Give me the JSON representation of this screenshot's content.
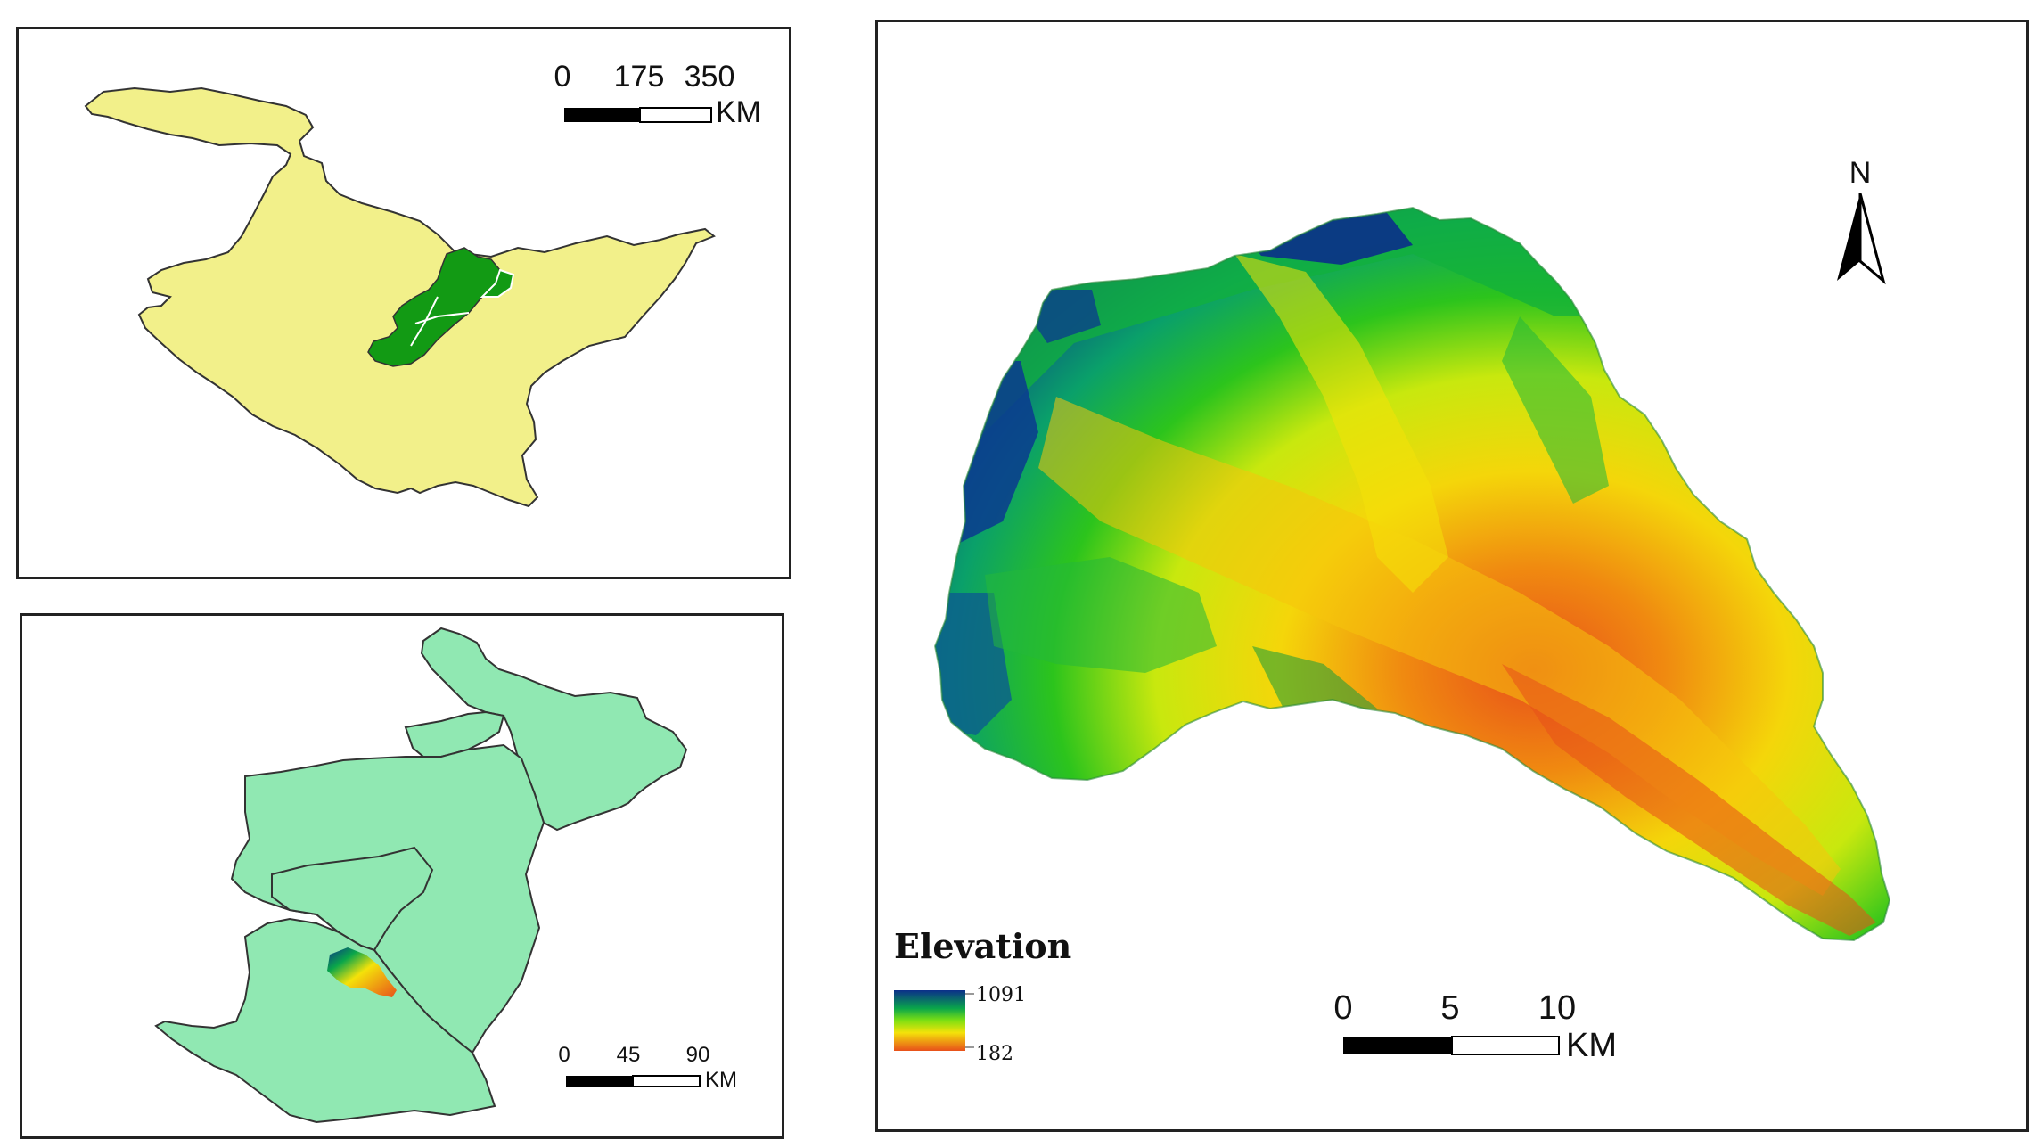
{
  "colors": {
    "province_fill": "#f2f08a",
    "region_highlight": "#129a14",
    "region_fill": "#90e8b2",
    "elev_high": "#0b2f8a",
    "elev_mid_high": "#0aa64a",
    "elev_mid": "#7ee012",
    "elev_mid_low": "#f4e20a",
    "elev_low": "#e8501a"
  },
  "province_map": {
    "scalebar": {
      "ticks": [
        "0",
        "175",
        "350"
      ],
      "unit": "KM"
    }
  },
  "region_map": {
    "scalebar": {
      "ticks": [
        "0",
        "45",
        "90"
      ],
      "unit": "KM"
    }
  },
  "basin_map": {
    "north_arrow_label": "N",
    "legend": {
      "title": "Elevation",
      "max_label": "1091",
      "min_label": "182"
    },
    "scalebar": {
      "ticks": [
        "0",
        "5",
        "10"
      ],
      "unit": "KM"
    }
  }
}
